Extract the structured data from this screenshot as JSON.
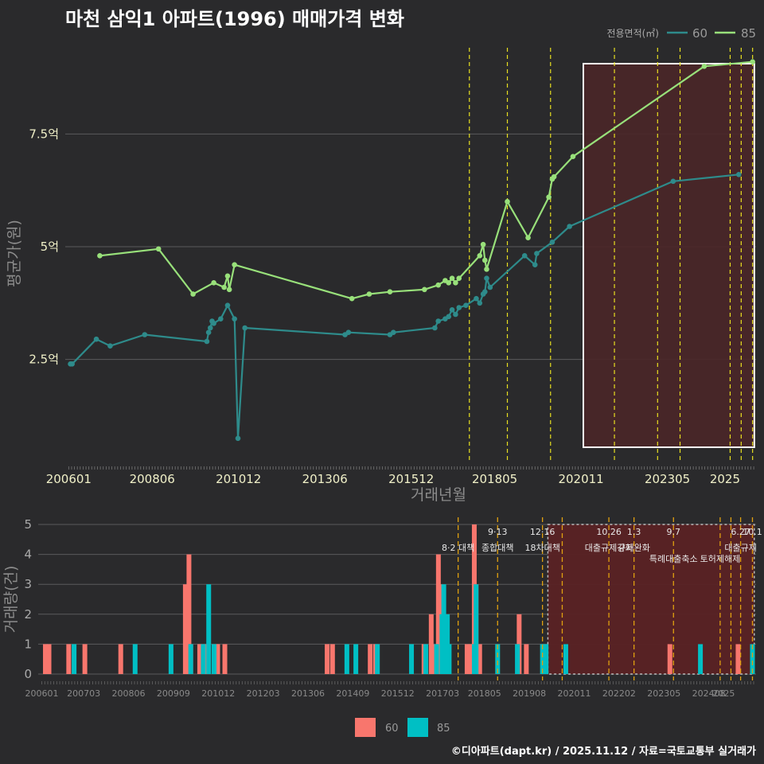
{
  "title": "마천 삼익1 아파트(1996) 매매가격 변화",
  "footer": "©디아파트(dapt.kr) / 2025.11.12 / 자료=국토교통부 실거래가",
  "colors": {
    "s60_line": "#2e8b8b",
    "s85_line": "#98e07a",
    "bar60": "#f8766d",
    "bar85": "#00bfc4",
    "vline": "#e8e020",
    "vline2": "#e0a010",
    "shade": "#4a2628",
    "shade2": "#5a2224"
  },
  "chart_data": [
    {
      "type": "line",
      "title": "마천 삼익1 아파트(1996) 매매가격 변화",
      "xlabel": "거래년월",
      "ylabel": "평균가(원)",
      "x_ticks": [
        "200601",
        "200806",
        "201012",
        "201306",
        "201512",
        "201805",
        "202011",
        "202305",
        "2025"
      ],
      "y_ticks": [
        {
          "value": 2.5,
          "label": "2.5억"
        },
        {
          "value": 5,
          "label": "5억"
        },
        {
          "value": 7.5,
          "label": "7.5억"
        }
      ],
      "ylim": [
        0.2,
        9.5
      ],
      "xlim": [
        2005.9,
        2025.9
      ],
      "legend": {
        "title": "전용면적(㎡)",
        "position": "top-right",
        "entries": [
          "60",
          "85"
        ]
      },
      "vlines": [
        2017.6,
        2018.7,
        2019.95,
        2021.8,
        2023.05,
        2023.7,
        2025.15,
        2025.47,
        2025.8
      ],
      "highlight_range": [
        2020.9,
        2025.85
      ],
      "series": [
        {
          "name": "60",
          "x": [
            2006.05,
            2006.1,
            2006.8,
            2007.2,
            2008.2,
            2010.0,
            2010.05,
            2010.1,
            2010.15,
            2010.2,
            2010.4,
            2010.6,
            2010.8,
            2010.9,
            2011.1,
            2014.0,
            2014.1,
            2015.3,
            2015.4,
            2016.6,
            2016.7,
            2016.9,
            2017.0,
            2017.1,
            2017.2,
            2017.3,
            2017.5,
            2017.8,
            2017.9,
            2018.0,
            2018.05,
            2018.1,
            2018.2,
            2019.2,
            2019.5,
            2019.55,
            2020.0,
            2020.5,
            2023.5,
            2025.4
          ],
          "values": [
            2.4,
            2.4,
            2.95,
            2.8,
            3.05,
            2.9,
            3.1,
            3.2,
            3.35,
            3.3,
            3.4,
            3.7,
            3.4,
            0.75,
            3.2,
            3.05,
            3.1,
            3.05,
            3.1,
            3.2,
            3.35,
            3.4,
            3.45,
            3.6,
            3.5,
            3.65,
            3.7,
            3.85,
            3.75,
            3.95,
            4.0,
            4.3,
            4.1,
            4.8,
            4.6,
            4.85,
            5.1,
            5.45,
            6.45,
            6.6
          ]
        },
        {
          "name": "85",
          "x": [
            2006.9,
            2008.6,
            2009.6,
            2010.2,
            2010.5,
            2010.6,
            2010.65,
            2010.8,
            2014.2,
            2014.7,
            2015.3,
            2016.3,
            2016.7,
            2016.9,
            2017.0,
            2017.1,
            2017.2,
            2017.3,
            2017.9,
            2018.0,
            2018.05,
            2018.1,
            2018.7,
            2019.3,
            2019.9,
            2020.0,
            2020.05,
            2020.6,
            2024.4,
            2025.8
          ],
          "values": [
            4.8,
            4.95,
            3.95,
            4.2,
            4.1,
            4.35,
            4.05,
            4.6,
            3.85,
            3.95,
            4.0,
            4.05,
            4.15,
            4.25,
            4.2,
            4.3,
            4.2,
            4.3,
            4.8,
            5.05,
            4.7,
            4.5,
            6.0,
            5.2,
            6.1,
            6.5,
            6.55,
            7.0,
            9.0,
            9.1
          ]
        }
      ]
    },
    {
      "type": "bar",
      "ylabel": "거래량(건)",
      "ylim": [
        0,
        5
      ],
      "y_ticks": [
        "0",
        "1",
        "2",
        "3",
        "4",
        "5"
      ],
      "x_ticks": [
        "200601",
        "200703",
        "200806",
        "200909",
        "201012",
        "201203",
        "201306",
        "201409",
        "201512",
        "201703",
        "201805",
        "201908",
        "202011",
        "202202",
        "202305",
        "202408",
        "2025"
      ],
      "xlim": [
        2005.9,
        2025.9
      ],
      "legend_entries": [
        "60",
        "85"
      ],
      "highlight_range": [
        2020.1,
        2025.85
      ],
      "vlines": [
        2017.6,
        2018.7,
        2019.95,
        2020.5,
        2021.8,
        2022.5,
        2023.6,
        2024.9,
        2025.2,
        2025.47,
        2025.8
      ],
      "annotations": [
        {
          "x": 2017.6,
          "date": "",
          "name": "8·2 대책"
        },
        {
          "x": 2018.7,
          "date": "9·13",
          "name": "종합대책"
        },
        {
          "x": 2019.95,
          "date": "12·16",
          "name": "18차대책"
        },
        {
          "x": 2021.8,
          "date": "10.26",
          "name": "대출규제강화"
        },
        {
          "x": 2022.5,
          "date": "1.3",
          "name": "규제완화"
        },
        {
          "x": 2023.6,
          "date": "9.7",
          "name": "특례대출축소"
        },
        {
          "x": 2024.9,
          "date": "",
          "name": "토허제해제"
        },
        {
          "x": 2025.47,
          "date": "6.27",
          "name": "대출규제"
        },
        {
          "x": 2025.8,
          "date": "10.1",
          "name": ""
        }
      ],
      "series": [
        {
          "name": "60",
          "x": [
            2006.1,
            2006.2,
            2006.75,
            2007.2,
            2008.2,
            2010.0,
            2010.1,
            2010.15,
            2010.4,
            2010.5,
            2010.6,
            2010.8,
            2010.9,
            2011.1,
            2013.95,
            2014.1,
            2015.15,
            2015.3,
            2016.65,
            2016.85,
            2016.95,
            2017.05,
            2017.1,
            2017.3,
            2017.85,
            2017.95,
            2018.05,
            2018.1,
            2018.2,
            2019.3,
            2019.5,
            2020.0,
            2023.5,
            2025.4
          ],
          "values": [
            1,
            1,
            1,
            1,
            1,
            3,
            4,
            1,
            1,
            1,
            1,
            1,
            1,
            1,
            1,
            1,
            1,
            1,
            1,
            2,
            1,
            4,
            3,
            1,
            1,
            1,
            5,
            3,
            1,
            2,
            1,
            1,
            1,
            1
          ]
        },
        {
          "name": "85",
          "x": [
            2006.9,
            2008.6,
            2009.6,
            2010.15,
            2010.5,
            2010.65,
            2010.8,
            2014.5,
            2014.75,
            2015.35,
            2016.3,
            2016.7,
            2017.0,
            2017.15,
            2017.2,
            2017.3,
            2017.35,
            2018.05,
            2018.1,
            2018.7,
            2019.25,
            2019.95,
            2020.05,
            2020.6,
            2024.35,
            2025.8
          ],
          "values": [
            1,
            1,
            1,
            1,
            1,
            3,
            1,
            1,
            1,
            1,
            1,
            1,
            1,
            2,
            3,
            2,
            1,
            1,
            3,
            1,
            1,
            1,
            1,
            1,
            1,
            1
          ]
        }
      ]
    }
  ]
}
